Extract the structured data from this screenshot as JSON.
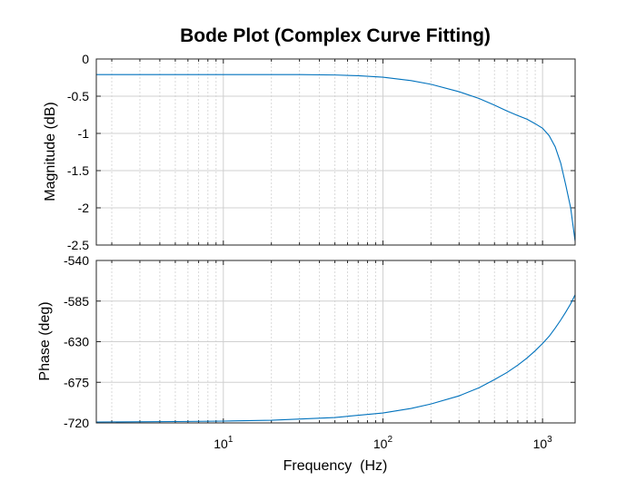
{
  "chart_data": {
    "type": "line",
    "title": "Bode Plot (Complex Curve Fitting)",
    "xlabel": "Frequency  (Hz)",
    "xscale": "log",
    "xlim": [
      1.6,
      1600
    ],
    "x_ticks": [
      {
        "value": 10,
        "base": "10",
        "exp": "1"
      },
      {
        "value": 100,
        "base": "10",
        "exp": "2"
      },
      {
        "value": 1000,
        "base": "10",
        "exp": "3"
      }
    ],
    "line_color": "#0072BD",
    "grid": true,
    "panels": [
      {
        "name": "magnitude",
        "ylabel": "Magnitude (dB)",
        "ylim": [
          -2.5,
          0
        ],
        "ytick_labels": [
          "0",
          "-0.5",
          "-1",
          "-1.5",
          "-2",
          "-2.5"
        ],
        "ytick_values": [
          0,
          -0.5,
          -1,
          -1.5,
          -2,
          -2.5
        ],
        "series": [
          {
            "x": [
              1.6,
              10,
              30,
              50,
              70,
              100,
              150,
              200,
              300,
              400,
              500,
              600,
              700,
              800,
              900,
              1000,
              1100,
              1200,
              1300,
              1400,
              1500,
              1600
            ],
            "y": [
              -0.21,
              -0.21,
              -0.21,
              -0.215,
              -0.225,
              -0.245,
              -0.29,
              -0.34,
              -0.44,
              -0.53,
              -0.62,
              -0.7,
              -0.76,
              -0.81,
              -0.87,
              -0.93,
              -1.03,
              -1.18,
              -1.4,
              -1.7,
              -2.0,
              -2.45
            ]
          }
        ]
      },
      {
        "name": "phase",
        "ylabel": "Phase (deg)",
        "ylim": [
          -720,
          -540
        ],
        "ytick_labels": [
          "-540",
          "-585",
          "-630",
          "-675",
          "-720"
        ],
        "ytick_values": [
          -540,
          -585,
          -630,
          -675,
          -720
        ],
        "series": [
          {
            "x": [
              1.6,
              5,
              10,
              20,
              50,
              100,
              150,
              200,
              300,
              400,
              500,
              600,
              700,
              800,
              900,
              1000,
              1100,
              1200,
              1300,
              1400,
              1500,
              1600
            ],
            "y": [
              -719,
              -718.5,
              -718,
              -717,
              -714,
              -709,
              -704,
              -699,
              -690,
              -681,
              -672,
              -664,
              -656,
              -648,
              -640,
              -632,
              -624,
              -615,
              -606,
              -597,
              -588,
              -578
            ]
          }
        ]
      }
    ]
  }
}
